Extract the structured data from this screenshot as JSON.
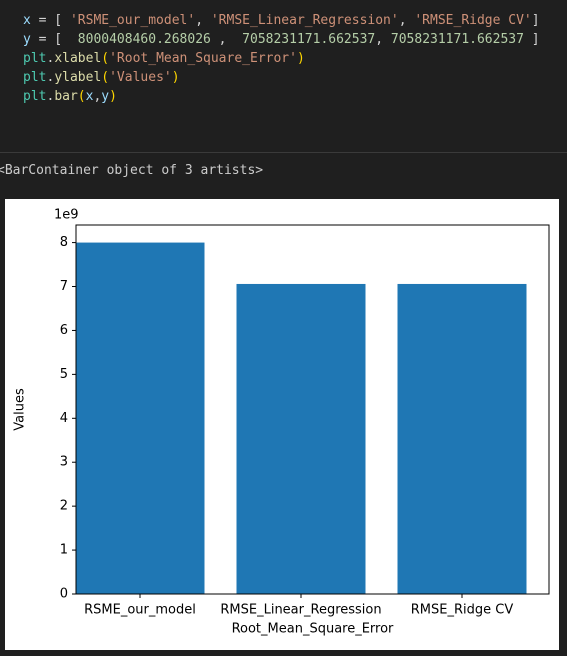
{
  "code_lines": [
    [
      {
        "text": "x",
        "color": "#9cdcfe"
      },
      {
        "text": " = [ ",
        "color": "#d4d4d4"
      },
      {
        "text": "'RSME_our_model'",
        "color": "#ce9178"
      },
      {
        "text": ", ",
        "color": "#d4d4d4"
      },
      {
        "text": "'RMSE_Linear_Regression'",
        "color": "#ce9178"
      },
      {
        "text": ", ",
        "color": "#d4d4d4"
      },
      {
        "text": "'RMSE_Ridge CV'",
        "color": "#ce9178"
      },
      {
        "text": "]",
        "color": "#d4d4d4"
      }
    ],
    [
      {
        "text": "y",
        "color": "#9cdcfe"
      },
      {
        "text": " = [  ",
        "color": "#d4d4d4"
      },
      {
        "text": "8000408460.268026",
        "color": "#b5cea8"
      },
      {
        "text": " ,  ",
        "color": "#d4d4d4"
      },
      {
        "text": "7058231171.662537",
        "color": "#b5cea8"
      },
      {
        "text": ", ",
        "color": "#d4d4d4"
      },
      {
        "text": "7058231171.662537",
        "color": "#b5cea8"
      },
      {
        "text": " ]",
        "color": "#d4d4d4"
      }
    ],
    [
      {
        "text": "plt",
        "color": "#4ec9b0"
      },
      {
        "text": ".",
        "color": "#d4d4d4"
      },
      {
        "text": "xlabel",
        "color": "#dcdcaa"
      },
      {
        "text": "(",
        "color": "#ffd700"
      },
      {
        "text": "'Root_Mean_Square_Error'",
        "color": "#ce9178"
      },
      {
        "text": ")",
        "color": "#ffd700"
      }
    ],
    [
      {
        "text": "plt",
        "color": "#4ec9b0"
      },
      {
        "text": ".",
        "color": "#d4d4d4"
      },
      {
        "text": "ylabel",
        "color": "#dcdcaa"
      },
      {
        "text": "(",
        "color": "#ffd700"
      },
      {
        "text": "'Values'",
        "color": "#ce9178"
      },
      {
        "text": ")",
        "color": "#ffd700"
      }
    ],
    [
      {
        "text": "plt",
        "color": "#4ec9b0"
      },
      {
        "text": ".",
        "color": "#d4d4d4"
      },
      {
        "text": "bar",
        "color": "#dcdcaa"
      },
      {
        "text": "(",
        "color": "#ffd700"
      },
      {
        "text": "x",
        "color": "#9cdcfe"
      },
      {
        "text": ",",
        "color": "#d4d4d4"
      },
      {
        "text": "y",
        "color": "#9cdcfe"
      },
      {
        "text": ")",
        "color": "#ffd700"
      }
    ]
  ],
  "output_text": "<BarContainer object of 3 artists>",
  "chart_data": {
    "type": "bar",
    "x_label": "Root_Mean_Square_Error",
    "y_label": "Values",
    "y_offset_label": "1e9",
    "categories": [
      "RSME_our_model",
      "RMSE_Linear_Regression",
      "RMSE_Ridge CV"
    ],
    "values": [
      8000408460.268026,
      7058231171.662537,
      7058231171.662537
    ],
    "color": "#1f77b4",
    "ylim": [
      0,
      8400428883
    ],
    "yticks": [
      {
        "value": 0,
        "label": "0"
      },
      {
        "value": 1000000000,
        "label": "1"
      },
      {
        "value": 2000000000,
        "label": "2"
      },
      {
        "value": 3000000000,
        "label": "3"
      },
      {
        "value": 4000000000,
        "label": "4"
      },
      {
        "value": 5000000000,
        "label": "5"
      },
      {
        "value": 6000000000,
        "label": "6"
      },
      {
        "value": 7000000000,
        "label": "7"
      },
      {
        "value": 8000000000,
        "label": "8"
      }
    ],
    "grid": false
  }
}
